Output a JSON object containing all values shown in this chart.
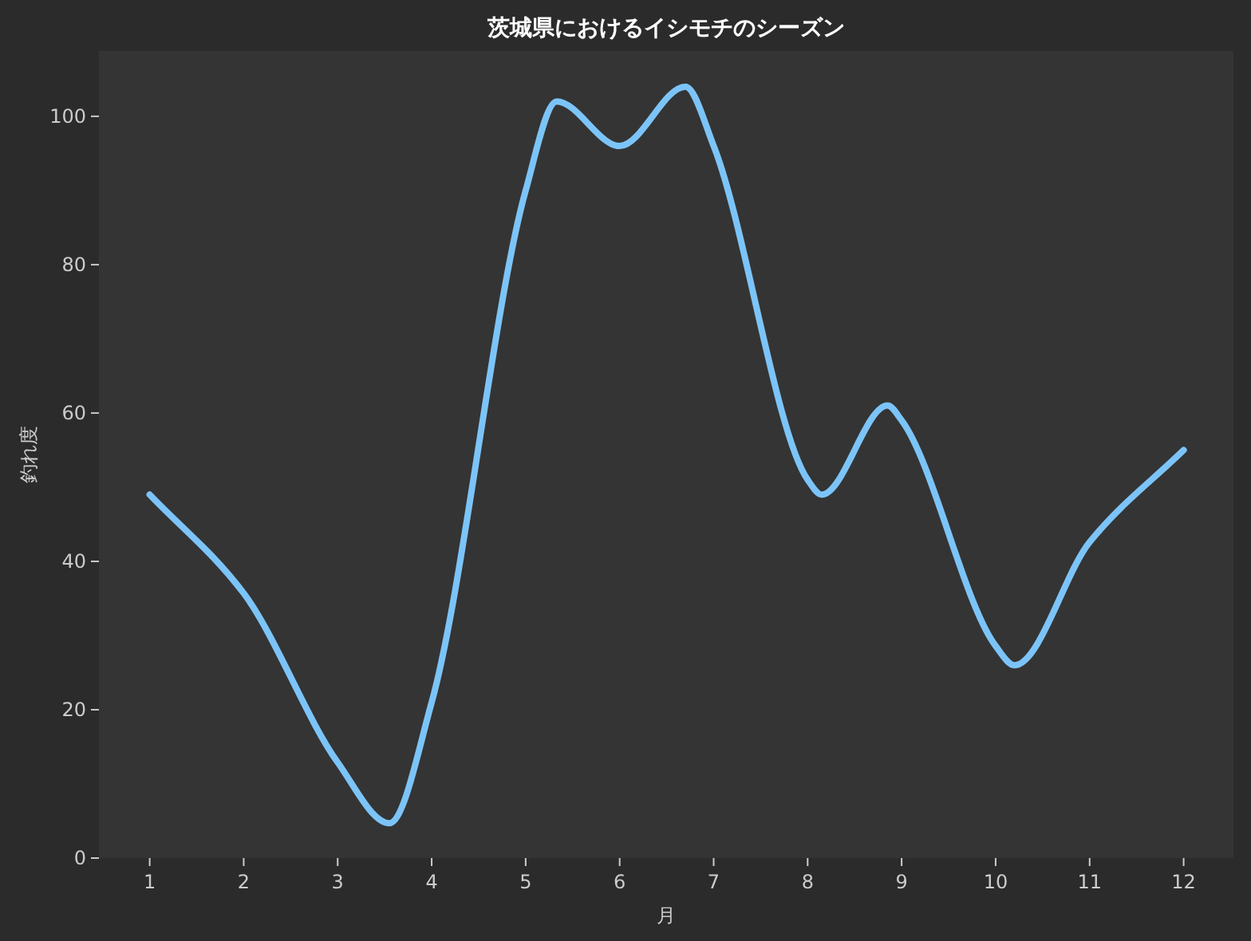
{
  "chart_data": {
    "type": "line",
    "title": "茨城県におけるイシモチのシーズン",
    "xlabel": "月",
    "ylabel": "釣れ度",
    "series": [
      {
        "color": "#7cc4f8",
        "x": [
          1,
          2,
          3,
          3.55,
          4,
          5,
          5.33,
          6,
          6.7,
          7,
          8,
          8.15,
          8.85,
          9,
          10,
          10.2,
          11,
          12
        ],
        "values": [
          49,
          35.7,
          12.9,
          4.7,
          21,
          90,
          102,
          96,
          104,
          96,
          51,
          49,
          61,
          59,
          28.6,
          26,
          42.6,
          55
        ]
      }
    ],
    "xlim": [
      0.46,
      12.53
    ],
    "ylim": [
      0,
      108.8
    ],
    "xticks": [
      1,
      2,
      3,
      4,
      5,
      6,
      7,
      8,
      9,
      10,
      11,
      12
    ],
    "yticks": [
      0,
      20,
      40,
      60,
      80,
      100
    ],
    "grid": false,
    "marker": "none",
    "line_style": "solid"
  }
}
